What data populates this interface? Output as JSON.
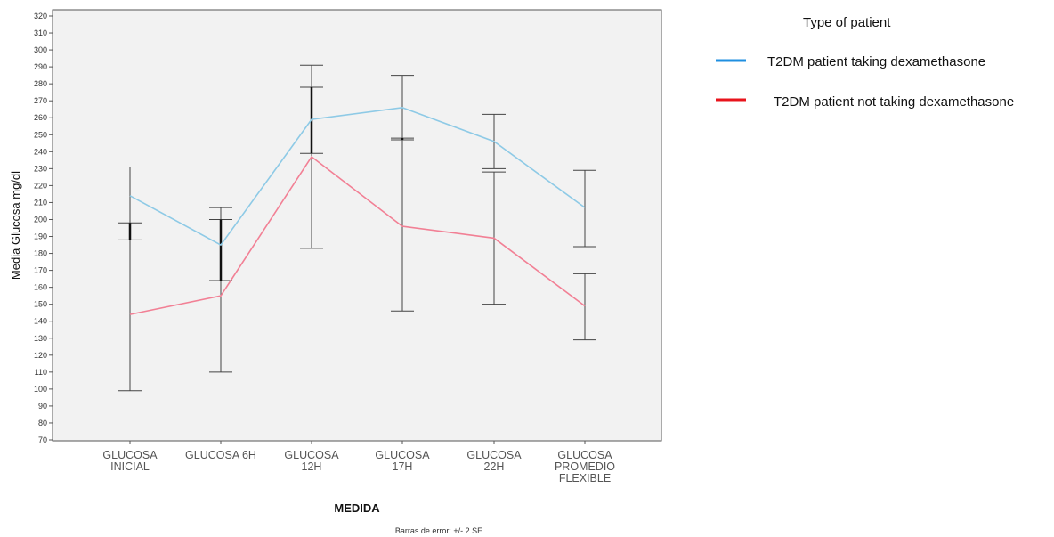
{
  "chart_data": {
    "type": "line",
    "xlabel": "MEDIDA",
    "ylabel": "Media Glucosa mg/dl",
    "ylim": [
      70,
      320
    ],
    "y_ticks": [
      70,
      80,
      90,
      100,
      110,
      120,
      130,
      140,
      150,
      160,
      170,
      180,
      190,
      200,
      210,
      220,
      230,
      240,
      250,
      260,
      270,
      280,
      290,
      300,
      310,
      320
    ],
    "categories": [
      [
        "GLUCOSA",
        "INICIAL"
      ],
      [
        "GLUCOSA 6H"
      ],
      [
        "GLUCOSA",
        "12H"
      ],
      [
        "GLUCOSA",
        "17H"
      ],
      [
        "GLUCOSA",
        "22H"
      ],
      [
        "GLUCOSA",
        "PROMEDIO",
        "FLEXIBLE"
      ]
    ],
    "footnote": "Barras de error: +/- 2 SE",
    "legend": {
      "title": "Type of patient",
      "position": "right"
    },
    "grid": false,
    "series": [
      {
        "name": "T2DM patient taking dexamethasone",
        "color": "#8ecae6",
        "legend_color": "#1f8fe0",
        "values": [
          214,
          185,
          259,
          266,
          246,
          207
        ],
        "err_low": [
          188,
          164,
          239,
          247,
          230,
          184
        ],
        "err_high": [
          231,
          207,
          291,
          285,
          262,
          229
        ]
      },
      {
        "name": "T2DM patient not taking dexamethasone",
        "color": "#f28095",
        "legend_color": "#e8141c",
        "values": [
          144,
          155,
          237,
          196,
          189,
          149
        ],
        "err_low": [
          99,
          110,
          183,
          146,
          150,
          129
        ],
        "err_high": [
          198,
          200,
          278,
          248,
          228,
          168
        ]
      }
    ]
  }
}
